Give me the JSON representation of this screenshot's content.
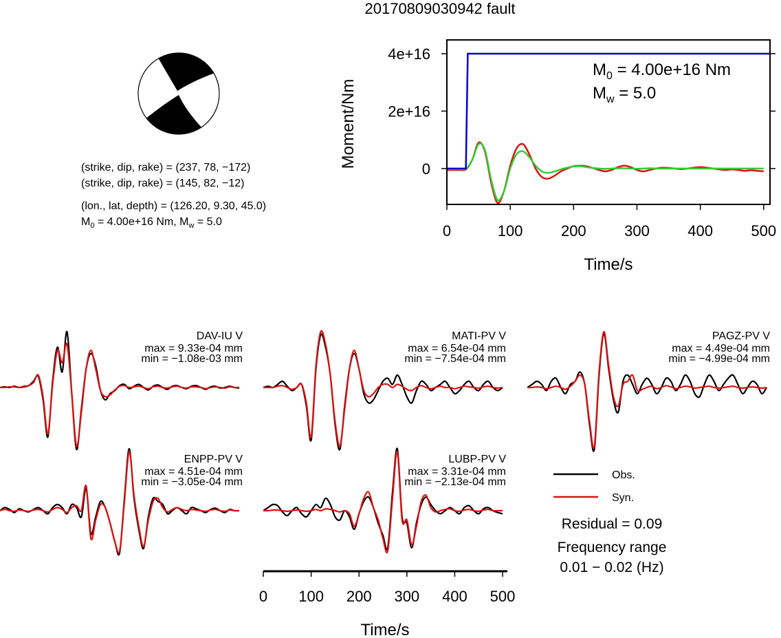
{
  "title": "20170809030942 fault",
  "mechanism": [
    "(strike, dip, rake) = (237, 78, −172)",
    "(strike, dip, rake) = (145, 82, −12)",
    "(lon., lat, depth) = (126.20, 9.30, 45.0)"
  ],
  "magnitude_line": {
    "m0_symbol": "M",
    "m0_sub": "0",
    "m0_text": " = 4.00e+16 Nm, ",
    "mw_symbol": "M",
    "mw_sub": "w",
    "mw_text": " = 5.0"
  },
  "chart_data": [
    {
      "type": "line",
      "ylabel": "Moment/Nm",
      "xlabel": "Time/s",
      "xlim": [
        0,
        510
      ],
      "xticks": [
        0,
        100,
        200,
        300,
        400,
        500
      ],
      "ylim": [
        -1.25e+16,
        4.48e+16
      ],
      "yticks": [
        0,
        {
          "value": 2e+16,
          "label": "2e+16"
        },
        {
          "value": 4e+16,
          "label": "4e+16"
        }
      ],
      "annotations": [
        {
          "symbol": "M",
          "sub": "0",
          "text": " = 4.00e+16 Nm"
        },
        {
          "symbol": "M",
          "sub": "w",
          "text": " = 5.0"
        }
      ],
      "x": [
        0,
        10,
        20,
        30,
        40,
        50,
        60,
        70,
        80,
        90,
        100,
        110,
        120,
        130,
        140,
        150,
        160,
        170,
        180,
        190,
        200,
        210,
        220,
        230,
        240,
        250,
        260,
        270,
        280,
        290,
        300,
        310,
        320,
        330,
        340,
        350,
        360,
        370,
        380,
        390,
        400,
        410,
        420,
        430,
        440,
        450,
        460,
        470,
        480,
        490,
        500
      ],
      "series": [
        {
          "color": "#dd1111",
          "values": [
            -500000000000000.0,
            -500000000000000.0,
            -500000000000000.0,
            -300000000000000.0,
            3000000000000000.0,
            9000000000000000.0,
            6000000000000000.0,
            -5000000000000000.0,
            -1.2e+16,
            -8000000000000000.0,
            1000000000000000.0,
            7000000000000000.0,
            8500000000000000.0,
            5000000000000000.0,
            0,
            -3000000000000000.0,
            -3500000000000000.0,
            -2500000000000000.0,
            -1000000000000000.0,
            0,
            800000000000000.0,
            1000000000000000.0,
            800000000000000.0,
            200000000000000.0,
            -500000000000000.0,
            -1000000000000000.0,
            -500000000000000.0,
            500000000000000.0,
            1000000000000000.0,
            500000000000000.0,
            -500000000000000.0,
            -1000000000000000.0,
            -500000000000000.0,
            0,
            300000000000000.0,
            200000000000000.0,
            0,
            -200000000000000.0,
            0,
            300000000000000.0,
            500000000000000.0,
            300000000000000.0,
            0,
            -300000000000000.0,
            -500000000000000.0,
            -300000000000000.0,
            -500000000000000.0,
            -800000000000000.0,
            -600000000000000.0,
            -800000000000000.0,
            -1000000000000000.0
          ]
        },
        {
          "color": "#33cc33",
          "values": [
            -200000000000000.0,
            -200000000000000.0,
            -200000000000000.0,
            -100000000000000.0,
            3000000000000000.0,
            8500000000000000.0,
            6500000000000000.0,
            -4000000000000000.0,
            -1.1e+16,
            -8000000000000000.0,
            0,
            5000000000000000.0,
            6000000000000000.0,
            4000000000000000.0,
            1000000000000000.0,
            -1000000000000000.0,
            -1500000000000000.0,
            -1000000000000000.0,
            -300000000000000.0,
            300000000000000.0,
            700000000000000.0,
            800000000000000.0,
            500000000000000.0,
            200000000000000.0,
            0,
            -100000000000000.0,
            0,
            100000000000000.0,
            100000000000000.0,
            0,
            -100000000000000.0,
            0,
            100000000000000.0,
            0,
            0,
            0,
            0,
            0,
            0,
            0,
            0,
            0,
            0,
            0,
            0,
            0,
            0,
            0,
            0,
            0,
            0
          ]
        },
        {
          "color": "#0000cc",
          "x": [
            0,
            30,
            33,
            510
          ],
          "values": [
            0,
            0,
            4e+16,
            4e+16
          ],
          "step": true
        }
      ]
    },
    {
      "type": "waveforms",
      "xlabel": "Time/s",
      "xlim": [
        0,
        510
      ],
      "xticks": [
        0,
        100,
        200,
        300,
        400,
        500
      ],
      "ylim": [
        -1,
        1
      ],
      "x": [
        0,
        10,
        20,
        30,
        40,
        50,
        60,
        70,
        80,
        90,
        100,
        110,
        120,
        130,
        140,
        150,
        160,
        170,
        180,
        190,
        200,
        210,
        220,
        230,
        240,
        250,
        260,
        270,
        280,
        290,
        300,
        310,
        320,
        330,
        340,
        350,
        360,
        370,
        380,
        390,
        400,
        410,
        420,
        430,
        440,
        450,
        460,
        470,
        480,
        490,
        500
      ],
      "panels": [
        {
          "station": "DAV-IU V",
          "max": "max = 9.33e-04 mm",
          "min": "min = −1.08e-03 mm",
          "series": [
            {
              "name": "Obs.",
              "color": "#000000",
              "values": [
                0,
                0.01,
                0,
                0.02,
                0,
                0.01,
                0.03,
                0.1,
                0.18,
                -0.2,
                -0.8,
                0.1,
                0.65,
                0.25,
                0.9,
                -0.1,
                -1.0,
                -0.35,
                0.3,
                0.55,
                0.35,
                -0.05,
                -0.2,
                -0.1,
                -0.05,
                0.03,
                0.05,
                -0.02,
                0.02,
                0.05,
                0,
                -0.04,
                0.02,
                0.04,
                0,
                -0.03,
                0.02,
                0.03,
                0,
                -0.02,
                0.02,
                0.03,
                0,
                -0.03,
                0.01,
                0.02,
                -0.01,
                0,
                0.02,
                0,
                -0.01
              ]
            },
            {
              "name": "Syn.",
              "color": "#dd1111",
              "values": [
                0,
                0,
                0.01,
                0.01,
                0,
                0.02,
                0.03,
                0.08,
                0.2,
                -0.15,
                -0.75,
                0.05,
                0.6,
                0.4,
                0.7,
                -0.1,
                -0.95,
                -0.4,
                0.3,
                0.6,
                0.3,
                -0.05,
                -0.15,
                -0.12,
                -0.04,
                0.02,
                0.03,
                0,
                0.01,
                0.02,
                0,
                -0.02,
                0.01,
                0.02,
                0,
                -0.01,
                0.01,
                0.02,
                0,
                -0.01,
                0.01,
                0.01,
                0,
                -0.02,
                0,
                0.01,
                0,
                -0.01,
                0.01,
                0,
                0
              ]
            }
          ]
        },
        {
          "station": "MATI-PV V",
          "max": "max = 6.54e-04 mm",
          "min": "min = −7.54e-04 mm",
          "series": [
            {
              "name": "Obs.",
              "color": "#000000",
              "values": [
                0,
                0.02,
                0,
                0.05,
                0.1,
                0.02,
                -0.05,
                0,
                0.05,
                -0.3,
                -0.85,
                0.3,
                0.85,
                0.65,
                0.2,
                -0.6,
                -1.0,
                -0.3,
                0.3,
                0.55,
                0.3,
                -0.1,
                -0.25,
                -0.2,
                -0.05,
                0.1,
                0.15,
                0.05,
                0.2,
                0.05,
                -0.15,
                -0.25,
                -0.05,
                0.1,
                0.05,
                -0.05,
                0,
                0.05,
                0.1,
                0,
                -0.1,
                -0.05,
                0.05,
                0.1,
                0,
                -0.05,
                0.05,
                0.1,
                0,
                -0.05,
                0
              ]
            },
            {
              "name": "Syn.",
              "color": "#dd1111",
              "values": [
                0,
                0,
                0,
                0.02,
                0.03,
                0,
                -0.03,
                0,
                0.05,
                -0.25,
                -0.8,
                0.35,
                0.9,
                0.7,
                0.2,
                -0.55,
                -0.95,
                -0.35,
                0.3,
                0.6,
                0.3,
                -0.05,
                -0.15,
                -0.1,
                0,
                0.05,
                0.05,
                0,
                0.05,
                0.02,
                -0.03,
                -0.05,
                0,
                0.03,
                0,
                -0.02,
                0,
                0.02,
                0,
                0,
                -0.02,
                0,
                0.02,
                0.01,
                0,
                -0.01,
                0.01,
                0.02,
                0,
                -0.01,
                0
              ]
            }
          ]
        },
        {
          "station": "PAGZ-PV V",
          "max": "max = 4.49e-04 mm",
          "min": "min = −4.99e-04 mm",
          "series": [
            {
              "name": "Obs.",
              "color": "#000000",
              "values": [
                0,
                0.05,
                0.1,
                0.05,
                -0.05,
                0.1,
                0.15,
                0,
                -0.1,
                0.05,
                0.1,
                0.25,
                0.05,
                -0.6,
                -1.0,
                0.2,
                0.87,
                0.3,
                -0.2,
                -0.4,
                0.1,
                0.2,
                0.05,
                -0.1,
                0.05,
                0.15,
                0.05,
                -0.1,
                0,
                0.15,
                0.1,
                -0.05,
                0.05,
                0.2,
                0.1,
                -0.1,
                -0.15,
                0.05,
                0.2,
                0.1,
                -0.05,
                0.05,
                0.15,
                0.2,
                0.05,
                -0.1,
                0,
                0.1,
                0.05,
                -0.1,
                0
              ]
            },
            {
              "name": "Syn.",
              "color": "#dd1111",
              "values": [
                0,
                0,
                0.01,
                0,
                -0.02,
                0,
                0.02,
                0,
                -0.03,
                0.02,
                0.1,
                0.2,
                0.05,
                -0.55,
                -0.95,
                0.25,
                0.9,
                0.35,
                -0.15,
                -0.3,
                0.05,
                0.1,
                0.2,
                -0.05,
                -0.03,
                0,
                0.02,
                -0.02,
                0,
                0.03,
                0.01,
                -0.02,
                0,
                0.02,
                0.01,
                -0.01,
                0,
                0.01,
                0.02,
                0,
                -0.01,
                0,
                0.01,
                0.02,
                0,
                -0.01,
                0,
                0.01,
                0,
                -0.01,
                0
              ]
            }
          ]
        },
        {
          "station": "ENPP-PV V",
          "max": "max = 4.51e-04 mm",
          "min": "min = −3.05e-04 mm",
          "series": [
            {
              "name": "Obs.",
              "color": "#000000",
              "values": [
                0,
                0.05,
                0.02,
                -0.03,
                0.03,
                0,
                -0.02,
                0.02,
                0.05,
                0,
                -0.05,
                0.05,
                0.1,
                0.05,
                -0.05,
                0.1,
                0.05,
                -0.1,
                0.36,
                -0.37,
                -0.1,
                0.15,
                0.05,
                -0.2,
                -0.5,
                -0.68,
                0.2,
                1.0,
                0.2,
                -0.3,
                -0.61,
                -0.1,
                0.2,
                0.15,
                0.1,
                -0.05,
                0,
                0.05,
                0,
                -0.05,
                0.05,
                0.03,
                0,
                -0.03,
                0.02,
                0.04,
                0,
                -0.03,
                0.02,
                0,
                0
              ]
            },
            {
              "name": "Syn.",
              "color": "#dd1111",
              "values": [
                0,
                0.02,
                0,
                -0.01,
                0.01,
                0,
                -0.01,
                0.01,
                0.02,
                0,
                -0.02,
                0.02,
                0.05,
                0.02,
                -0.03,
                0.05,
                0.08,
                0,
                0.4,
                -0.45,
                -0.15,
                0.1,
                0.05,
                -0.2,
                -0.5,
                -0.65,
                0.15,
                0.95,
                0.25,
                -0.25,
                -0.58,
                -0.15,
                0.15,
                0.2,
                0.05,
                -0.02,
                0.02,
                0.05,
                0.02,
                0,
                0.02,
                0.01,
                0,
                -0.01,
                0.01,
                0.02,
                0,
                -0.01,
                0.01,
                0,
                0
              ]
            }
          ]
        },
        {
          "station": "LUBP-PV V",
          "max": "max = 3.31e-04 mm",
          "min": "min = −2.13e-04 mm",
          "series": [
            {
              "name": "Obs.",
              "color": "#000000",
              "values": [
                0,
                0.05,
                0.1,
                0.08,
                -0.02,
                -0.08,
                0,
                0.05,
                -0.05,
                -0.1,
                0,
                0.1,
                0.05,
                0.2,
                0.1,
                -0.1,
                -0.15,
                0,
                -0.1,
                -0.3,
                -0.05,
                0.15,
                0.22,
                0.05,
                -0.2,
                -0.4,
                -0.6,
                0.3,
                1.0,
                -0.1,
                -0.2,
                -0.6,
                -0.2,
                0.1,
                0.22,
                0.1,
                0,
                -0.05,
                0,
                0.05,
                0,
                -0.05,
                0.05,
                0.08,
                0,
                -0.05,
                0.03,
                0.05,
                0,
                -0.03,
                -0.05
              ]
            },
            {
              "name": "Syn.",
              "color": "#dd1111",
              "values": [
                0,
                0,
                0.01,
                0.01,
                0,
                -0.01,
                0,
                0.01,
                0,
                -0.01,
                0,
                0.02,
                0,
                0.03,
                0.02,
                0,
                -0.02,
                0,
                -0.05,
                -0.25,
                -0.05,
                0.2,
                0.3,
                0.05,
                -0.15,
                -0.45,
                -0.65,
                0.2,
                0.95,
                -0.15,
                -0.15,
                -0.55,
                -0.25,
                0.15,
                0.25,
                0.05,
                -0.02,
                0,
                0.02,
                0.03,
                0,
                -0.01,
                0.01,
                0.02,
                0,
                -0.01,
                0.01,
                0.02,
                0,
                0,
                0
              ]
            }
          ]
        }
      ],
      "residual": "Residual = 0.09",
      "frequency_label": "Frequency range",
      "frequency_range": "0.01 − 0.02 (Hz)"
    }
  ]
}
